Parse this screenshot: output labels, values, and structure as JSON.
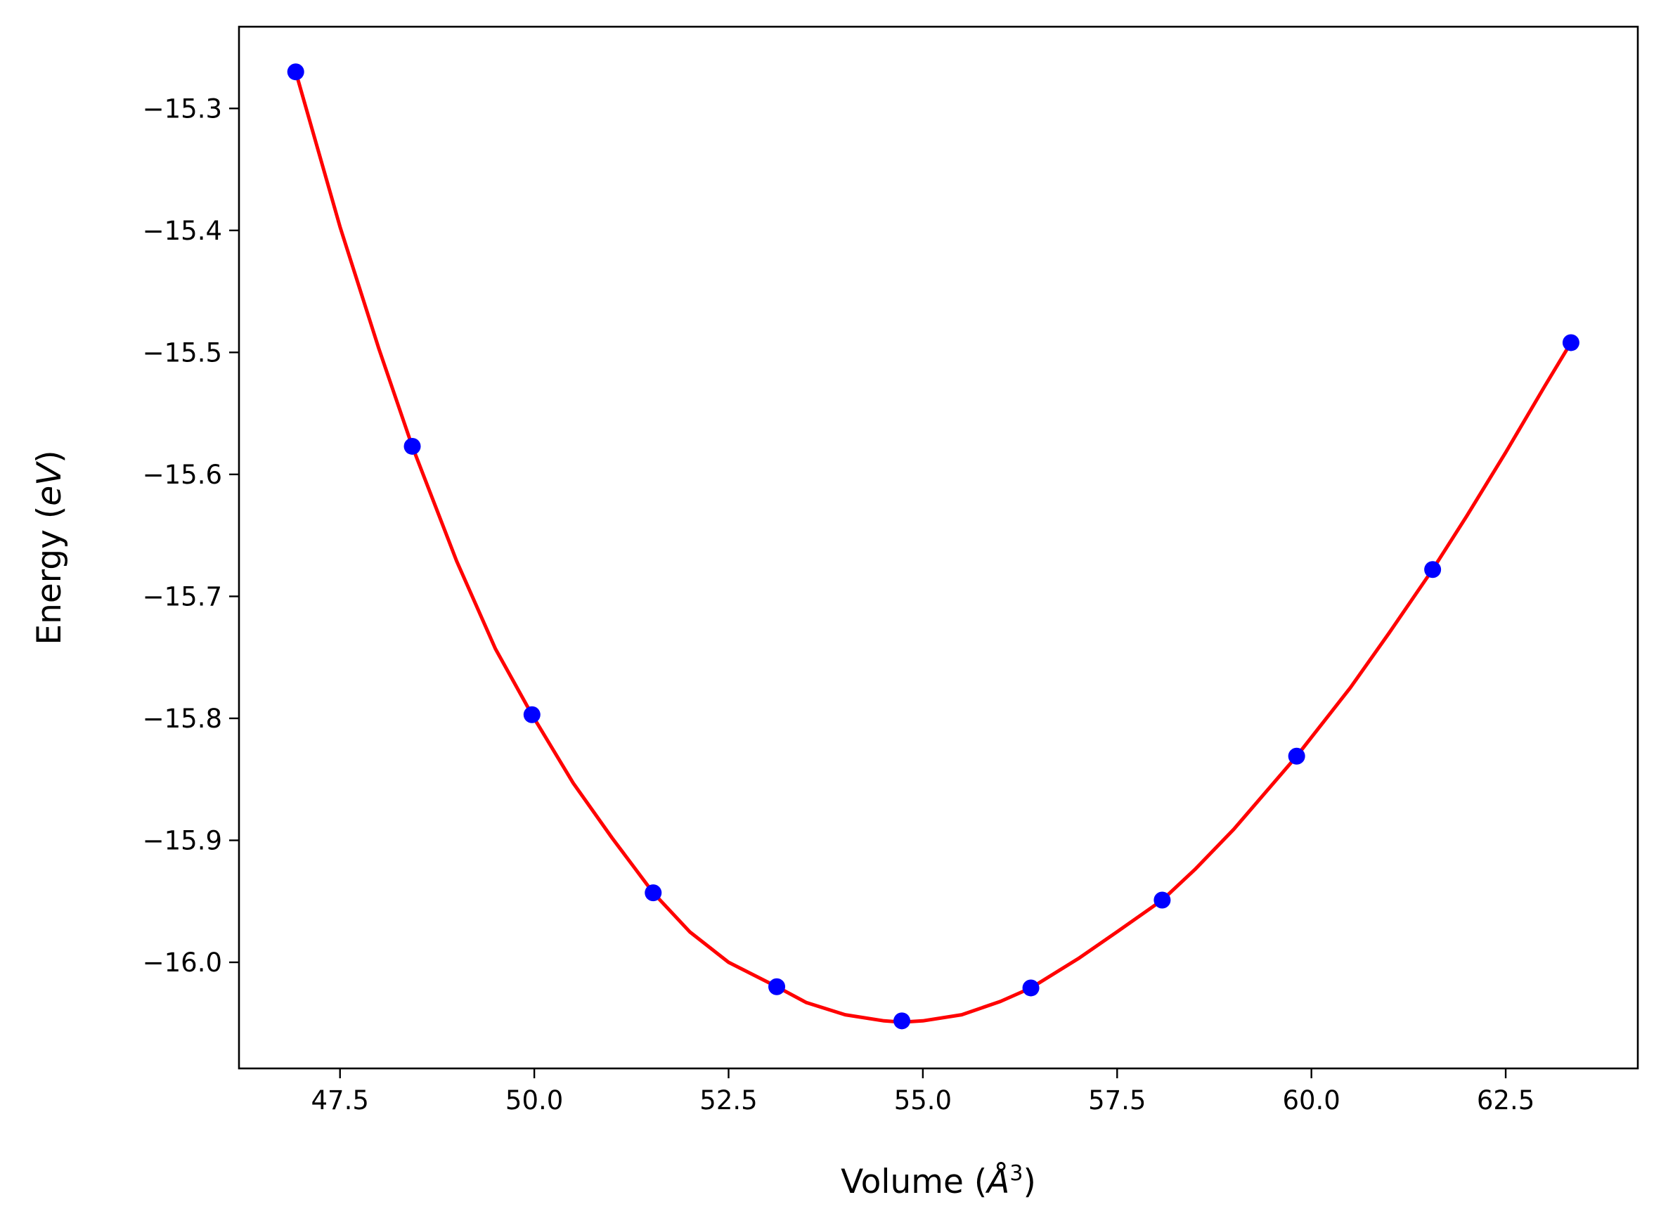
{
  "chart_data": {
    "type": "scatter",
    "title": "",
    "xlabel": {
      "text": "Volume (",
      "symbol": "Å",
      "power": "3",
      "close": ")"
    },
    "ylabel": {
      "text": "Energy (",
      "unit": "eV",
      "close": ")"
    },
    "xlim": [
      46.2,
      64.2
    ],
    "ylim": [
      -16.087,
      -15.233
    ],
    "grid": false,
    "legend": "none",
    "x_ticks": [
      47.5,
      50.0,
      52.5,
      55.0,
      57.5,
      60.0,
      62.5
    ],
    "x_tick_labels": [
      "47.5",
      "50.0",
      "52.5",
      "55.0",
      "57.5",
      "60.0",
      "62.5"
    ],
    "y_ticks": [
      -15.3,
      -15.4,
      -15.5,
      -15.6,
      -15.7,
      -15.8,
      -15.9,
      -16.0
    ],
    "y_tick_labels": [
      "−15.3",
      "−15.4",
      "−15.5",
      "−15.6",
      "−15.7",
      "−15.8",
      "−15.9",
      "−16.0"
    ],
    "series": [
      {
        "kind": "points",
        "color": "#0000ff",
        "x": [
          46.93,
          48.43,
          49.97,
          51.53,
          53.12,
          54.73,
          56.39,
          58.08,
          59.81,
          61.56,
          63.34
        ],
        "y": [
          -15.27,
          -15.577,
          -15.797,
          -15.943,
          -16.02,
          -16.048,
          -16.021,
          -15.949,
          -15.831,
          -15.678,
          -15.492
        ]
      },
      {
        "kind": "fit-curve",
        "color": "#ff0000",
        "x": [
          46.93,
          47.5,
          48.0,
          48.43,
          49.0,
          49.5,
          49.97,
          50.5,
          51.0,
          51.53,
          52.0,
          52.5,
          53.12,
          53.5,
          54.0,
          54.5,
          54.73,
          55.0,
          55.5,
          56.0,
          56.39,
          57.0,
          57.5,
          58.08,
          58.5,
          59.0,
          59.81,
          60.5,
          61.0,
          61.56,
          62.0,
          62.5,
          63.0,
          63.34
        ],
        "y": [
          -15.27,
          -15.397,
          -15.497,
          -15.577,
          -15.671,
          -15.743,
          -15.797,
          -15.853,
          -15.898,
          -15.943,
          -15.975,
          -16.0,
          -16.02,
          -16.033,
          -16.043,
          -16.048,
          -16.049,
          -16.048,
          -16.043,
          -16.032,
          -16.021,
          -15.997,
          -15.975,
          -15.949,
          -15.924,
          -15.891,
          -15.831,
          -15.775,
          -15.73,
          -15.678,
          -15.634,
          -15.582,
          -15.528,
          -15.492
        ]
      }
    ]
  }
}
